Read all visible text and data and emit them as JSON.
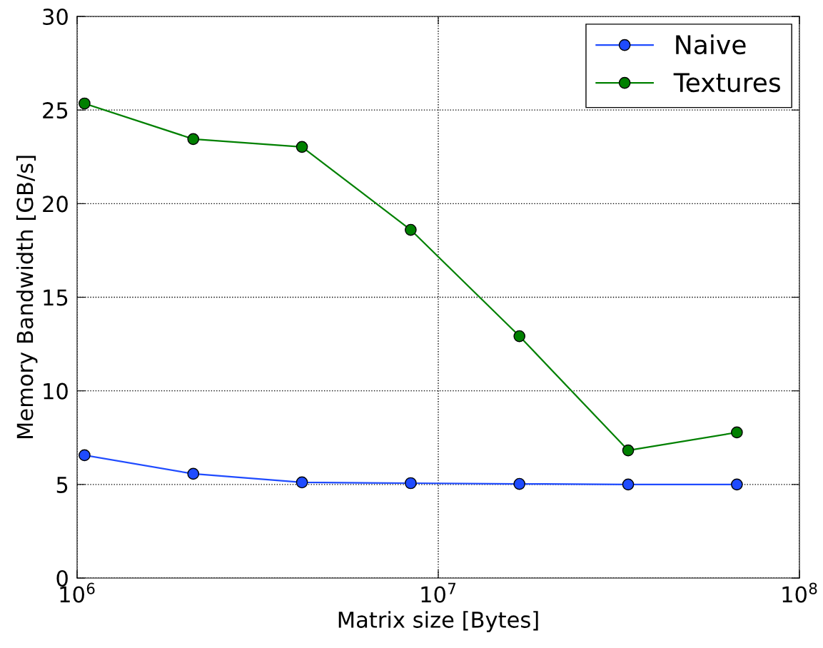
{
  "chart_data": {
    "type": "line",
    "xlabel": "Matrix size [Bytes]",
    "ylabel": "Memory Bandwidth [GB/s]",
    "x": [
      1048576,
      2097152,
      4194304,
      8388608,
      16777216,
      33554432,
      67108864
    ],
    "series": [
      {
        "name": "Naive",
        "color": "#1f4bff",
        "values": [
          6.56,
          5.57,
          5.11,
          5.07,
          5.03,
          5.0,
          5.0
        ]
      },
      {
        "name": "Textures",
        "color": "#008000",
        "values": [
          25.35,
          23.45,
          23.03,
          18.6,
          12.92,
          6.82,
          7.78
        ]
      }
    ],
    "log": "x",
    "xlim": [
      1000000,
      100000000
    ],
    "xticks": [
      {
        "value": 1000000,
        "label": "10$^{6}$"
      },
      {
        "value": 10000000,
        "label": "10$^{7}$"
      },
      {
        "value": 100000000,
        "label": "10$^{8}$"
      }
    ],
    "ylim": [
      0,
      30
    ],
    "yticks": [
      0,
      5,
      10,
      15,
      20,
      25,
      30
    ],
    "grid": true,
    "legend": "top right",
    "marker": "circle",
    "line_style": "solid"
  }
}
